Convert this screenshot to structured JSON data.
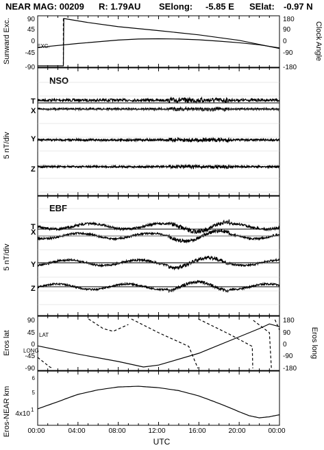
{
  "header": {
    "title": "NEAR MAG: 00209",
    "r": "R: 1.79AU",
    "selong": "SElong:",
    "selong_val": "-5.85 E",
    "selat": "SElat:",
    "selat_val": "-0.97 N"
  },
  "chart_data": [
    {
      "id": "exc-clock",
      "type": "line",
      "ylabel_left": "Sunward Exc.",
      "ylabel_right": "Clock Angle",
      "yticks_left": [
        "90",
        "45",
        "0",
        "-45",
        "-90"
      ],
      "yticks_right": [
        "180",
        "90",
        "0",
        "-90",
        "-180"
      ],
      "ylim_left": [
        -90,
        90
      ],
      "ylim_right": [
        -180,
        180
      ],
      "annotations": [
        "EXC."
      ],
      "series": [
        {
          "name": "EXC.",
          "axis": "left",
          "points": [
            [
              0,
              -20
            ],
            [
              4,
              -5
            ],
            [
              8,
              8
            ],
            [
              10,
              12
            ],
            [
              12,
              13
            ],
            [
              14,
              12
            ],
            [
              16,
              9
            ],
            [
              18,
              4
            ],
            [
              20,
              -2
            ],
            [
              22,
              -10
            ],
            [
              24,
              -22
            ]
          ]
        },
        {
          "axis": "right",
          "points": [
            [
              0,
              -180
            ],
            [
              2.55,
              -180
            ],
            [
              2.55,
              -180
            ],
            [
              2.6,
              180
            ],
            [
              5,
              150
            ],
            [
              8,
              118
            ],
            [
              12,
              88
            ],
            [
              16,
              56
            ],
            [
              20,
              14
            ],
            [
              24,
              -48
            ]
          ]
        }
      ]
    },
    {
      "id": "nso",
      "type": "line",
      "panel_label": "NSO",
      "ylabel": "5 nT/div",
      "components": [
        {
          "name": "T",
          "level": 0,
          "noise": 1.2
        },
        {
          "name": "X",
          "level": 0,
          "noise": 0.9
        },
        {
          "name": "Y",
          "level": 0,
          "noise": 1.0
        },
        {
          "name": "Z",
          "level": 0,
          "noise": 0.9
        }
      ]
    },
    {
      "id": "ebf",
      "type": "line",
      "panel_label": "EBF",
      "ylabel": "5 nT/div",
      "components": [
        {
          "name": "T",
          "level": 0,
          "noise": 1.2
        },
        {
          "name": "X",
          "level": 0,
          "noise": 1.0
        },
        {
          "name": "Y",
          "level": 0,
          "noise": 1.0
        },
        {
          "name": "Z",
          "level": 0,
          "noise": 0.9
        }
      ]
    },
    {
      "id": "eros-latlong",
      "type": "line",
      "ylabel_left": "Eros lat",
      "ylabel_right": "Eros long",
      "yticks_left": [
        "90",
        "45",
        "0",
        "-45",
        "-90"
      ],
      "yticks_right": [
        "180",
        "90",
        "0",
        "-90",
        "-180"
      ],
      "ylim_left": [
        -90,
        90
      ],
      "ylim_right": [
        -180,
        180
      ],
      "annotations": [
        "LAT",
        "LONG"
      ],
      "series": [
        {
          "name": "LAT",
          "axis": "left",
          "points": [
            [
              0,
              -8
            ],
            [
              4,
              -38
            ],
            [
              8,
              -65
            ],
            [
              10.5,
              -85
            ],
            [
              12,
              -78
            ],
            [
              16,
              -35
            ],
            [
              20,
              25
            ],
            [
              22,
              55
            ],
            [
              23,
              72
            ],
            [
              24,
              62
            ]
          ]
        },
        {
          "name": "LONG",
          "axis": "right",
          "points": [
            [
              0,
              -100
            ],
            [
              1.2,
              -170
            ],
            [
              1.55,
              -180
            ],
            [
              1.6,
              180
            ],
            [
              5,
              -175
            ],
            [
              5.05,
              180
            ],
            [
              6.5,
              110
            ],
            [
              7.5,
              90
            ],
            [
              9,
              140
            ],
            [
              9.05,
              -175
            ],
            [
              9.3,
              180
            ],
            [
              12,
              80
            ],
            [
              15,
              -20
            ],
            [
              15.9,
              -180
            ],
            [
              15.95,
              180
            ],
            [
              19,
              70
            ],
            [
              21.3,
              -20
            ],
            [
              21.35,
              -180
            ],
            [
              21.4,
              170
            ],
            [
              23,
              80
            ],
            [
              23.2,
              -180
            ],
            [
              23.3,
              175
            ],
            [
              23.5,
              -180
            ],
            [
              23.55,
              175
            ],
            [
              24,
              100
            ]
          ]
        }
      ]
    },
    {
      "id": "eros-near-km",
      "type": "line",
      "ylabel": "Eros-NEAR km",
      "yscale": "log",
      "yticks": [
        "6",
        "5",
        "4x10"
      ],
      "ytick_sup": "1",
      "ylim": [
        35,
        65
      ],
      "series": [
        {
          "points": [
            [
              0,
              42
            ],
            [
              2,
              46
            ],
            [
              4,
              50.5
            ],
            [
              6,
              53.5
            ],
            [
              8,
              55.5
            ],
            [
              10,
              56
            ],
            [
              12,
              55
            ],
            [
              14,
              53
            ],
            [
              16,
              49.5
            ],
            [
              18,
              45
            ],
            [
              20,
              40.5
            ],
            [
              21,
              38.5
            ],
            [
              22,
              37.5
            ],
            [
              23,
              38
            ],
            [
              24,
              39
            ]
          ]
        }
      ]
    }
  ],
  "xaxis": {
    "label": "UTC",
    "ticks": [
      "00:00",
      "04:00",
      "08:00",
      "12:00",
      "16:00",
      "20:00",
      "00:00"
    ],
    "range": [
      0,
      24
    ]
  }
}
